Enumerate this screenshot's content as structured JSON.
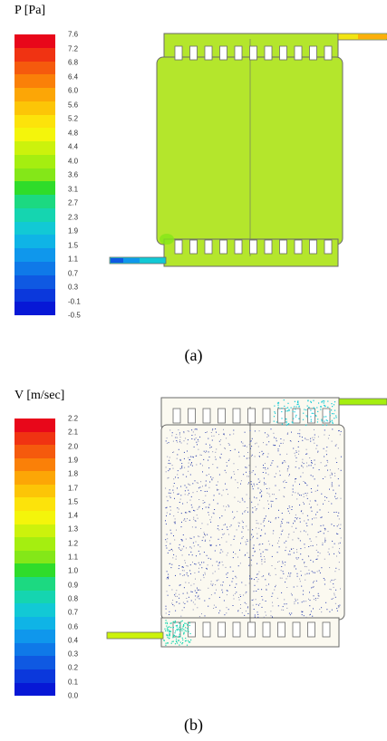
{
  "panel_a": {
    "title": "P [Pa]",
    "ticks": [
      "7.6",
      "7.2",
      "6.8",
      "6.4",
      "6.0",
      "5.6",
      "5.2",
      "4.8",
      "4.4",
      "4.0",
      "3.6",
      "3.1",
      "2.7",
      "2.3",
      "1.9",
      "1.5",
      "1.1",
      "0.7",
      "0.3",
      "-0.1",
      "-0.5"
    ],
    "caption": "(a)"
  },
  "panel_b": {
    "title": "V [m/sec]",
    "ticks": [
      "2.2",
      "2.1",
      "2.0",
      "1.9",
      "1.8",
      "1.7",
      "1.5",
      "1.4",
      "1.3",
      "1.2",
      "1.1",
      "1.0",
      "0.9",
      "0.8",
      "0.7",
      "0.6",
      "0.4",
      "0.3",
      "0.2",
      "0.1",
      "0.0"
    ],
    "caption": "(b)"
  },
  "colors": {
    "scale": [
      "#e8071a",
      "#f03312",
      "#f55a0d",
      "#fa8008",
      "#fca606",
      "#fcc507",
      "#fce30b",
      "#f4f50b",
      "#ccf20c",
      "#a5ee10",
      "#84e718",
      "#2fdc2a",
      "#1cd981",
      "#15d5b0",
      "#12c9d5",
      "#0fb4e6",
      "#0f97ec",
      "#0f79e8",
      "#0f59e2",
      "#0b38dc",
      "#0718d6"
    ],
    "plate_fill": "#b4e62c",
    "outline": "#6a6a6a"
  }
}
